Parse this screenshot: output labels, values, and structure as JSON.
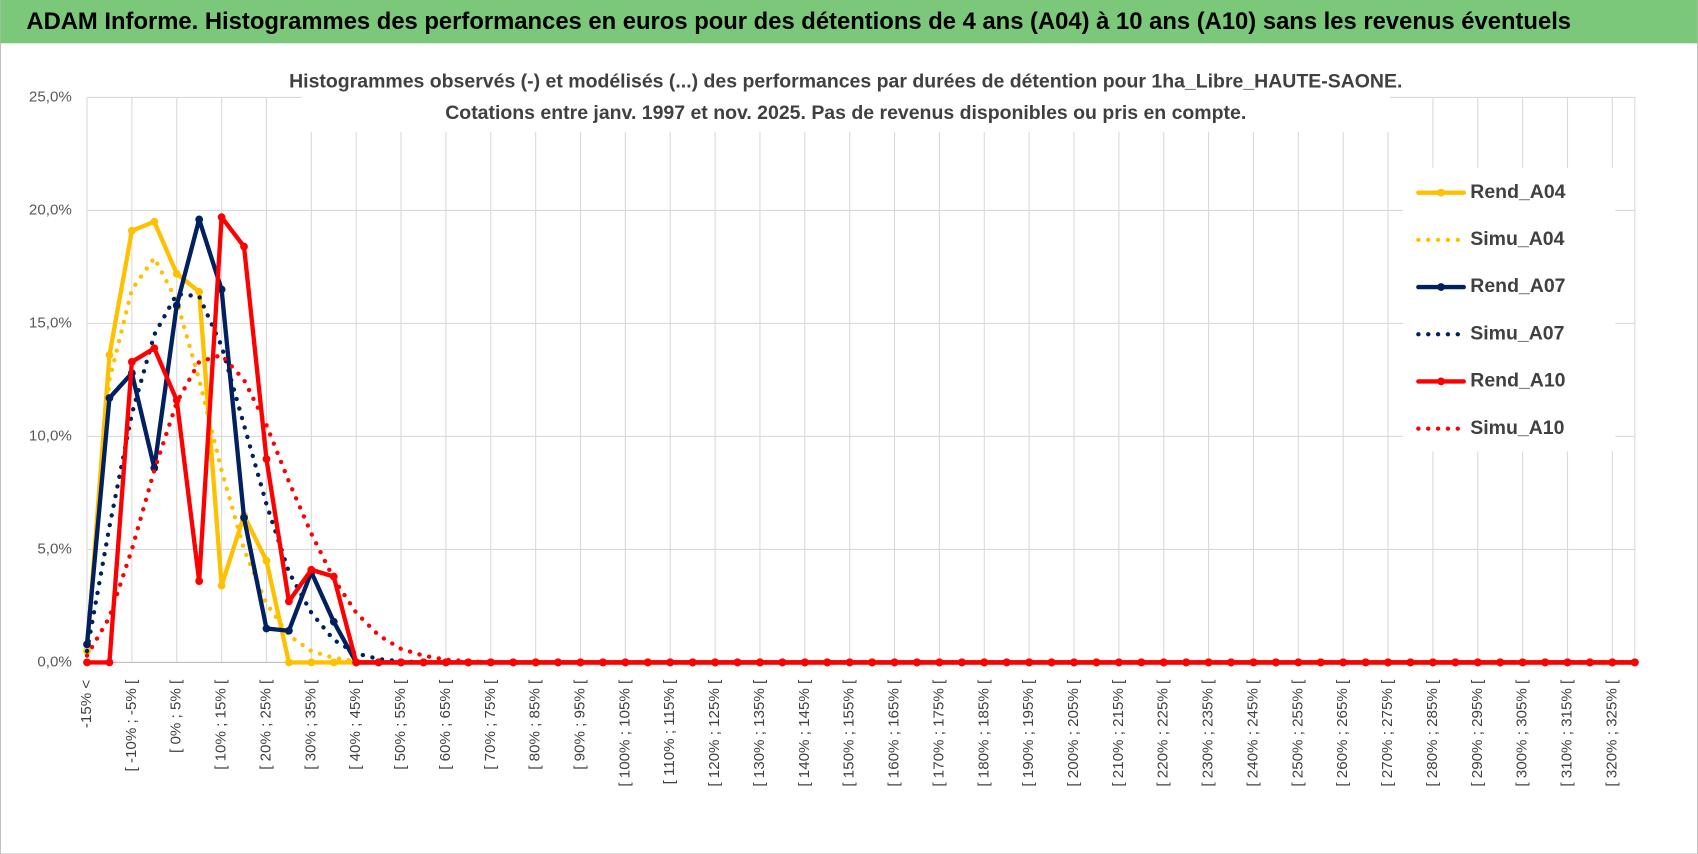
{
  "header": {
    "title": "ADAM Informe. Histogrammes des performances en euros pour des détentions de 4 ans (A04) à 10 ans (A10) sans les revenus éventuels"
  },
  "chart_data": {
    "type": "line",
    "title_lines": [
      "Histogrammes observés (-) et modélisés (...) des performances par durées de détention pour 1ha_Libre_HAUTE-SAONE.",
      "Cotations entre janv. 1997 et nov. 2025. Pas de revenus disponibles ou pris en compte."
    ],
    "categories": [
      "-15% <",
      null,
      "[ -10% ; -5% [",
      null,
      "[ 0% ; 5% [",
      null,
      "[ 10% ; 15% [",
      null,
      "[ 20% ; 25% [",
      null,
      "[ 30% ; 35% [",
      null,
      "[ 40% ; 45% [",
      null,
      "[ 50% ; 55% [",
      null,
      "[ 60% ; 65% [",
      null,
      "[ 70% ; 75% [",
      null,
      "[ 80% ; 85% [",
      null,
      "[ 90% ; 95% [",
      null,
      "[ 100% ; 105% [",
      null,
      "[ 110% ; 115% [",
      null,
      "[ 120% ; 125% [",
      null,
      "[ 130% ; 135% [",
      null,
      "[ 140% ; 145% [",
      null,
      "[ 150% ; 155% [",
      null,
      "[ 160% ; 165% [",
      null,
      "[ 170% ; 175% [",
      null,
      "[ 180% ; 185% [",
      null,
      "[ 190% ; 195% [",
      null,
      "[ 200% ; 205% [",
      null,
      "[ 210% ; 215% [",
      null,
      "[ 220% ; 225% [",
      null,
      "[ 230% ; 235% [",
      null,
      "[ 240% ; 245% [",
      null,
      "[ 250% ; 255% [",
      null,
      "[ 260% ; 265% [",
      null,
      "[ 270% ; 275% [",
      null,
      "[ 280% ; 285% [",
      null,
      "[ 290% ; 295% [",
      null,
      "[ 300% ; 305% [",
      null,
      "[ 310% ; 315% [",
      null,
      "[ 320% ; 325% [",
      null
    ],
    "ylim": [
      0,
      25
    ],
    "yticks": [
      {
        "value": 0,
        "label": "0,0%"
      },
      {
        "value": 5,
        "label": "5,0%"
      },
      {
        "value": 10,
        "label": "10,0%"
      },
      {
        "value": 15,
        "label": "15,0%"
      },
      {
        "value": 20,
        "label": "20,0%"
      },
      {
        "value": 25,
        "label": "25,0%"
      }
    ],
    "grid": true,
    "legend": "right",
    "series": [
      {
        "name": "Rend_A04",
        "color": "#FFC000",
        "style": "solid",
        "values": [
          0.5,
          13.6,
          19.1,
          19.5,
          17.2,
          16.4,
          3.4,
          6.5,
          4.5,
          0,
          0,
          0,
          0,
          0,
          0,
          0,
          0,
          0,
          0,
          0,
          0,
          0,
          0,
          0,
          0,
          0,
          0,
          0,
          0,
          0,
          0,
          0,
          0,
          0,
          0,
          0,
          0,
          0,
          0,
          0,
          0,
          0,
          0,
          0,
          0,
          0,
          0,
          0,
          0,
          0,
          0,
          0,
          0,
          0,
          0,
          0,
          0,
          0,
          0,
          0,
          0,
          0,
          0,
          0,
          0,
          0,
          0,
          0,
          0,
          0
        ]
      },
      {
        "name": "Simu_A04",
        "color": "#FFC000",
        "style": "dotted",
        "values": [
          0.8,
          12.5,
          16.5,
          17.9,
          16.0,
          12.5,
          8.5,
          5.0,
          2.6,
          1.2,
          0.5,
          0.2,
          0.05,
          0,
          0,
          0,
          0,
          0,
          0,
          0,
          0,
          0,
          0,
          0,
          0,
          0,
          0,
          0,
          0,
          0,
          0,
          0,
          0,
          0,
          0,
          0,
          0,
          0,
          0,
          0,
          0,
          0,
          0,
          0,
          0,
          0,
          0,
          0,
          0,
          0,
          0,
          0,
          0,
          0,
          0,
          0,
          0,
          0,
          0,
          0,
          0,
          0,
          0,
          0,
          0,
          0,
          0,
          0,
          0,
          0
        ]
      },
      {
        "name": "Rend_A07",
        "color": "#002060",
        "style": "solid",
        "values": [
          0.8,
          11.7,
          12.8,
          8.6,
          15.8,
          19.6,
          16.5,
          6.4,
          1.5,
          1.4,
          4.0,
          1.8,
          0,
          0,
          0,
          0,
          0,
          0,
          0,
          0,
          0,
          0,
          0,
          0,
          0,
          0,
          0,
          0,
          0,
          0,
          0,
          0,
          0,
          0,
          0,
          0,
          0,
          0,
          0,
          0,
          0,
          0,
          0,
          0,
          0,
          0,
          0,
          0,
          0,
          0,
          0,
          0,
          0,
          0,
          0,
          0,
          0,
          0,
          0,
          0,
          0,
          0,
          0,
          0,
          0,
          0,
          0,
          0,
          0,
          0
        ]
      },
      {
        "name": "Simu_A07",
        "color": "#002060",
        "style": "dotted",
        "values": [
          0.5,
          6,
          11,
          14.5,
          16.3,
          16.2,
          14,
          10.5,
          7,
          4,
          2.2,
          1,
          0.4,
          0.15,
          0.05,
          0,
          0,
          0,
          0,
          0,
          0,
          0,
          0,
          0,
          0,
          0,
          0,
          0,
          0,
          0,
          0,
          0,
          0,
          0,
          0,
          0,
          0,
          0,
          0,
          0,
          0,
          0,
          0,
          0,
          0,
          0,
          0,
          0,
          0,
          0,
          0,
          0,
          0,
          0,
          0,
          0,
          0,
          0,
          0,
          0,
          0,
          0,
          0,
          0,
          0,
          0,
          0,
          0,
          0,
          0
        ]
      },
      {
        "name": "Rend_A10",
        "color": "#FF0000",
        "style": "solid",
        "values": [
          0,
          0,
          13.3,
          13.9,
          11.6,
          3.6,
          19.7,
          18.4,
          9.0,
          2.7,
          4.1,
          3.8,
          0,
          0,
          0,
          0,
          0,
          0,
          0,
          0,
          0,
          0,
          0,
          0,
          0,
          0,
          0,
          0,
          0,
          0,
          0,
          0,
          0,
          0,
          0,
          0,
          0,
          0,
          0,
          0,
          0,
          0,
          0,
          0,
          0,
          0,
          0,
          0,
          0,
          0,
          0,
          0,
          0,
          0,
          0,
          0,
          0,
          0,
          0,
          0,
          0,
          0,
          0,
          0,
          0,
          0,
          0,
          0,
          0,
          0
        ]
      },
      {
        "name": "Simu_A10",
        "color": "#FF0000",
        "style": "dotted",
        "values": [
          0.3,
          2,
          5,
          8.5,
          11.5,
          13.3,
          13.6,
          12.5,
          10.5,
          8,
          5.7,
          3.7,
          2.2,
          1.2,
          0.6,
          0.3,
          0.12,
          0.05,
          0,
          0,
          0,
          0,
          0,
          0,
          0,
          0,
          0,
          0,
          0,
          0,
          0,
          0,
          0,
          0,
          0,
          0,
          0,
          0,
          0,
          0,
          0,
          0,
          0,
          0,
          0,
          0,
          0,
          0,
          0,
          0,
          0,
          0,
          0,
          0,
          0,
          0,
          0,
          0,
          0,
          0,
          0,
          0,
          0,
          0,
          0,
          0,
          0,
          0,
          0,
          0
        ]
      }
    ]
  }
}
